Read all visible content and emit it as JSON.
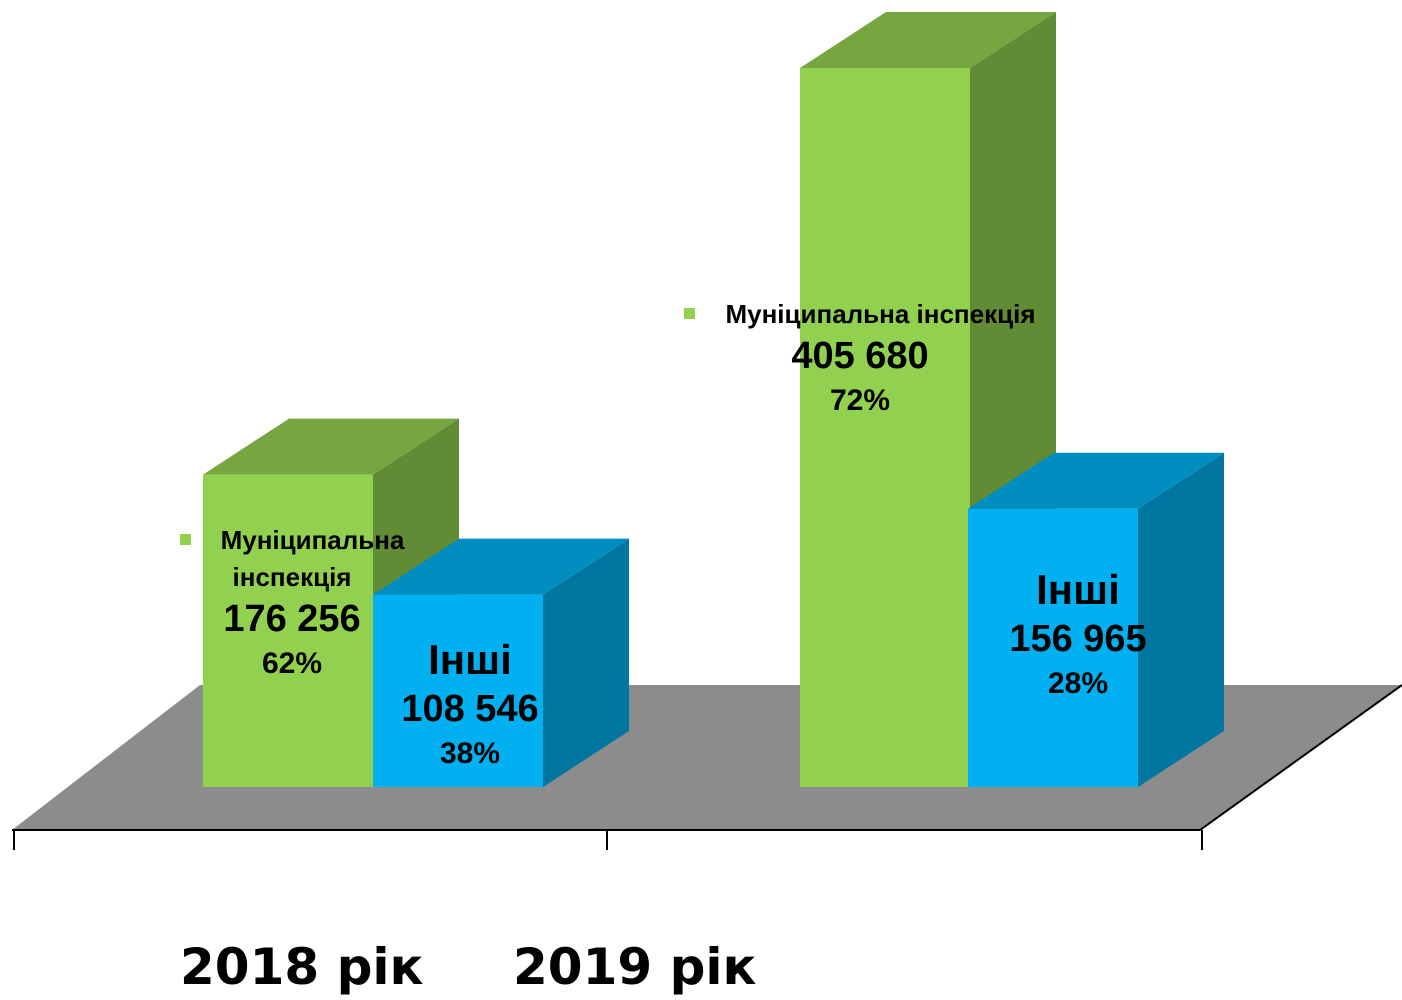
{
  "chart_data": {
    "type": "bar3d",
    "categories": [
      "2018 рік",
      "2019 рік"
    ],
    "series": [
      {
        "name": "Муніципальна інспекція",
        "color": "#92d050",
        "values": [
          176256,
          405680
        ],
        "value_labels": [
          "176 256",
          "405 680"
        ],
        "shares": [
          62,
          72
        ],
        "share_labels": [
          "62%",
          "72%"
        ]
      },
      {
        "name": "Інші",
        "color": "#00b0f0",
        "values": [
          108546,
          156965
        ],
        "value_labels": [
          "108 546",
          "156 965"
        ],
        "shares": [
          38,
          28
        ],
        "share_labels": [
          "38%",
          "28%"
        ]
      }
    ]
  }
}
